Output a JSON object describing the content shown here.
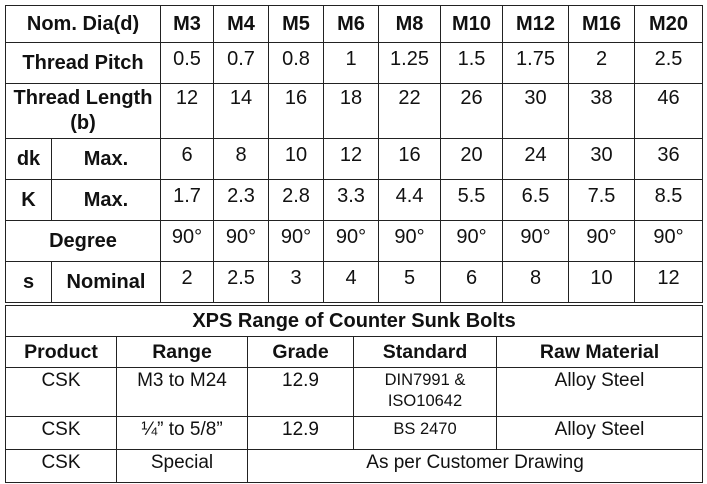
{
  "spec_table": {
    "header_label": "Nom. Dia(d)",
    "sizes": [
      "M3",
      "M4",
      "M5",
      "M6",
      "M8",
      "M10",
      "M12",
      "M16",
      "M20"
    ],
    "thread_pitch": {
      "label": "Thread Pitch",
      "values": [
        "0.5",
        "0.7",
        "0.8",
        "1",
        "1.25",
        "1.5",
        "1.75",
        "2",
        "2.5"
      ]
    },
    "thread_length": {
      "label": "Thread Length (b)",
      "values": [
        "12",
        "14",
        "16",
        "18",
        "22",
        "26",
        "30",
        "38",
        "46"
      ]
    },
    "dk": {
      "label": "dk",
      "sublabel": "Max.",
      "values": [
        "6",
        "8",
        "10",
        "12",
        "16",
        "20",
        "24",
        "30",
        "36"
      ]
    },
    "k": {
      "label": "K",
      "sublabel": "Max.",
      "values": [
        "1.7",
        "2.3",
        "2.8",
        "3.3",
        "4.4",
        "5.5",
        "6.5",
        "7.5",
        "8.5"
      ]
    },
    "degree": {
      "label": "Degree",
      "values": [
        "90°",
        "90°",
        "90°",
        "90°",
        "90°",
        "90°",
        "90°",
        "90°",
        "90°"
      ]
    },
    "s": {
      "label": "s",
      "sublabel": "Nominal",
      "values": [
        "2",
        "2.5",
        "3",
        "4",
        "5",
        "6",
        "8",
        "10",
        "12"
      ]
    }
  },
  "range_table": {
    "title": "XPS Range of Counter Sunk Bolts",
    "columns": [
      "Product",
      "Range",
      "Grade",
      "Standard",
      "Raw Material"
    ],
    "rows": [
      {
        "product": "CSK",
        "range": "M3 to M24",
        "grade": "12.9",
        "standard": "DIN7991 & ISO10642",
        "material": "Alloy Steel"
      },
      {
        "product": "CSK",
        "range": "¼” to 5/8”",
        "grade": "12.9",
        "standard": "BS 2470",
        "material": "Alloy Steel"
      },
      {
        "product": "CSK",
        "range": "Special",
        "merged": "As per Customer Drawing"
      }
    ]
  }
}
